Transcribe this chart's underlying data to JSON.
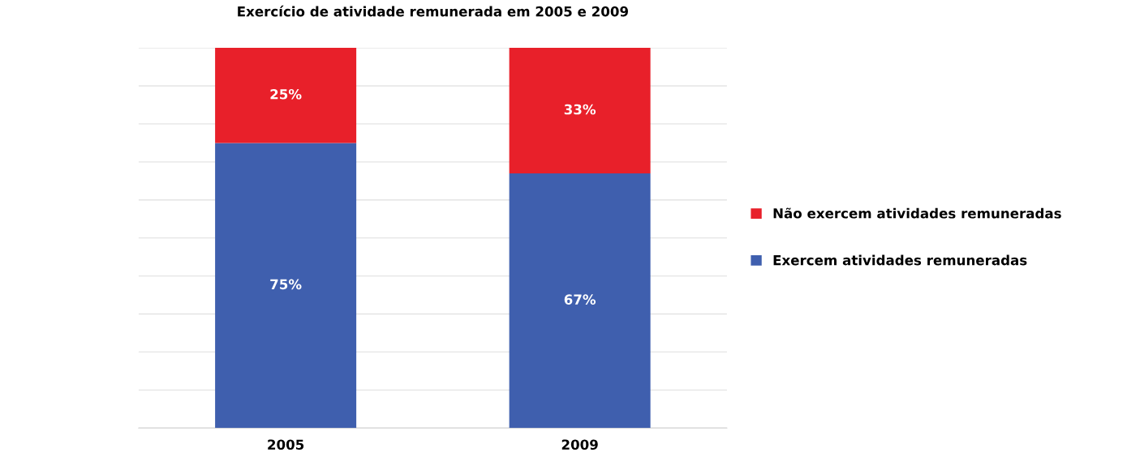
{
  "chart_data": {
    "type": "bar",
    "title": "Exercício de atividade remunerada em 2005 e 2009",
    "categories": [
      "2005",
      "2009"
    ],
    "stacked": true,
    "series": [
      {
        "name": "Exercem atividades remuneradas",
        "color": "#3f5fae",
        "values": [
          75,
          67
        ],
        "value_labels": [
          "75%",
          "67%"
        ]
      },
      {
        "name": "Não exercem atividades remuneradas",
        "color": "#e8202a",
        "values": [
          25,
          33
        ],
        "value_labels": [
          "25%",
          "33%"
        ]
      }
    ],
    "ylim": [
      0,
      100
    ],
    "yticks": [
      {
        "value": 0,
        "label": null
      },
      {
        "value": 10,
        "label": null
      },
      {
        "value": 20,
        "label": null
      },
      {
        "value": 30,
        "label": null
      },
      {
        "value": 40,
        "label": null
      },
      {
        "value": 50,
        "label": null
      },
      {
        "value": 60,
        "label": null
      },
      {
        "value": 70,
        "label": null
      },
      {
        "value": 80,
        "label": null
      },
      {
        "value": 90,
        "label": null
      },
      {
        "value": 100,
        "label": null
      }
    ],
    "grid": "y",
    "legend": "right",
    "tick_labels": "x"
  }
}
